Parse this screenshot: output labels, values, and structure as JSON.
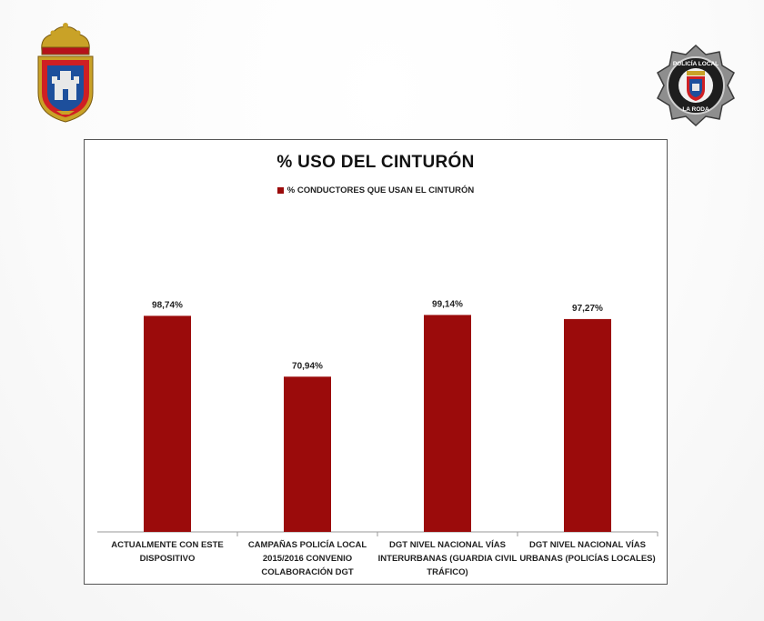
{
  "colors": {
    "bar": "#9b0b0b",
    "axis": "#9a9a9a",
    "frame": "#555555"
  },
  "logos": {
    "left": {
      "icon": "municipal-coat-of-arms"
    },
    "right": {
      "icon": "police-star-badge",
      "text_top": "POLICÍA LOCAL",
      "text_bottom": "LA RODA"
    }
  },
  "chart_data": {
    "type": "bar",
    "title": "% USO DEL CINTURÓN",
    "legend_position": "top",
    "grid": false,
    "ylim": [
      0,
      150
    ],
    "categories": [
      [
        "ACTUALMENTE CON ESTE",
        "DISPOSITIVO"
      ],
      [
        "CAMPAÑAS POLICÍA LOCAL",
        "2015/2016 CONVENIO",
        "COLABORACIÓN DGT"
      ],
      [
        "DGT NIVEL NACIONAL VÍAS",
        "INTERURBANAS (GUARDIA CIVIL",
        "TRÁFICO)"
      ],
      [
        "DGT NIVEL NACIONAL VÍAS",
        "URBANAS (POLICÍAS LOCALES)"
      ]
    ],
    "series": [
      {
        "name": "% CONDUCTORES QUE USAN EL CINTURÓN",
        "values": [
          98.74,
          70.94,
          99.14,
          97.27
        ],
        "labels": [
          "98,74%",
          "70,94%",
          "99,14%",
          "97,27%"
        ]
      }
    ]
  }
}
